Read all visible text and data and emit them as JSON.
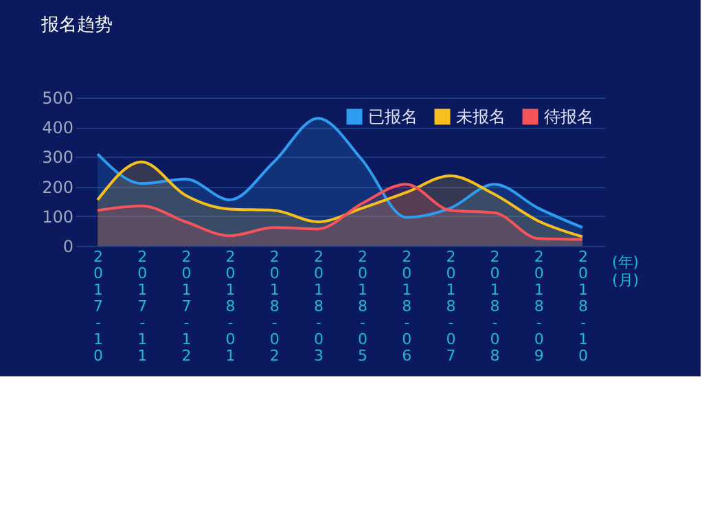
{
  "chart_data": {
    "type": "area",
    "title": "报名趋势",
    "xlabel": "(年)\n(月)",
    "categories": [
      "2017-10",
      "2017-11",
      "2017-12",
      "2018-01",
      "2018-02",
      "2018-03",
      "2018-05",
      "2018-06",
      "2018-07",
      "2018-08",
      "2018-09",
      "2018-10"
    ],
    "series": [
      {
        "name": "已报名",
        "color": "#2e9cf0",
        "values": [
          310,
          210,
          225,
          155,
          283,
          430,
          290,
          96,
          127,
          208,
          127,
          62
        ]
      },
      {
        "name": "未报名",
        "color": "#f5c01e",
        "values": [
          155,
          283,
          170,
          124,
          120,
          81,
          127,
          180,
          236,
          174,
          84,
          31
        ]
      },
      {
        "name": "待报名",
        "color": "#f5545a",
        "values": [
          120,
          135,
          81,
          34,
          62,
          57,
          143,
          208,
          120,
          112,
          25,
          22
        ]
      }
    ],
    "ylim": [
      0,
      500
    ],
    "yticks": [
      0,
      100,
      200,
      300,
      400,
      500
    ],
    "grid": "y",
    "legend": "top right"
  }
}
